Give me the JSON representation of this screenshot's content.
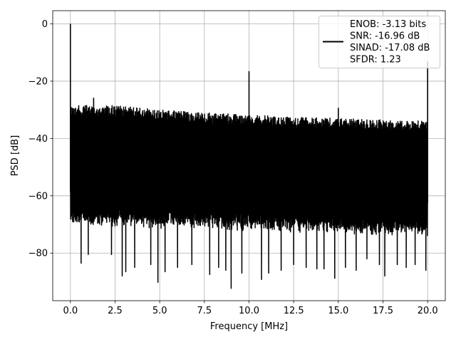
{
  "chart_data": {
    "type": "line",
    "xlabel": "Frequency [MHz]",
    "ylabel": "PSD [dB]",
    "xlim": [
      -0.99,
      20.99
    ],
    "ylim": [
      -96.6,
      4.6
    ],
    "xticks": [
      0.0,
      2.5,
      5.0,
      7.5,
      10.0,
      12.5,
      15.0,
      17.5,
      20.0
    ],
    "xtick_labels": [
      "0.0",
      "2.5",
      "5.0",
      "7.5",
      "10.0",
      "12.5",
      "15.0",
      "17.5",
      "20.0"
    ],
    "yticks": [
      0,
      -20,
      -40,
      -60,
      -80
    ],
    "ytick_labels": [
      "0",
      "−20",
      "−40",
      "−60",
      "−80"
    ],
    "grid": true,
    "legend": {
      "location": "top-right",
      "lines": [
        "ENOB: -3.13 bits",
        "SNR: -16.96 dB",
        "SINAD: -17.08 dB",
        "SFDR: 1.23"
      ]
    },
    "series": [
      {
        "color": "#000000",
        "noise_ceiling": {
          "x": [
            0.0,
            2.5,
            5.0,
            7.5,
            10.0,
            12.5,
            15.0,
            17.5,
            20.0
          ],
          "y": [
            -28.5,
            -28.5,
            -30.0,
            -31.0,
            -31.8,
            -32.5,
            -33.0,
            -33.5,
            -33.8
          ]
        },
        "noise_floor": {
          "x": [
            0.0,
            20.0
          ],
          "y": [
            -66.5,
            -70.5
          ]
        },
        "spikes": [
          {
            "x": 0.0,
            "y": 0.0
          },
          {
            "x": 1.3,
            "y": -25.8
          },
          {
            "x": 10.0,
            "y": -16.5
          },
          {
            "x": 15.0,
            "y": -29.3
          },
          {
            "x": 20.0,
            "y": -13.2
          }
        ],
        "dips": [
          {
            "x": 0.6,
            "y": -83.5
          },
          {
            "x": 1.0,
            "y": -80.5
          },
          {
            "x": 2.3,
            "y": -80.5
          },
          {
            "x": 2.9,
            "y": -88.0
          },
          {
            "x": 3.1,
            "y": -86.5
          },
          {
            "x": 3.6,
            "y": -85.0
          },
          {
            "x": 4.5,
            "y": -84.0
          },
          {
            "x": 4.9,
            "y": -90.2
          },
          {
            "x": 5.3,
            "y": -86.5
          },
          {
            "x": 6.0,
            "y": -85.0
          },
          {
            "x": 6.8,
            "y": -84.0
          },
          {
            "x": 7.8,
            "y": -87.5
          },
          {
            "x": 8.3,
            "y": -85.0
          },
          {
            "x": 8.7,
            "y": -86.0
          },
          {
            "x": 9.0,
            "y": -92.3
          },
          {
            "x": 9.6,
            "y": -87.0
          },
          {
            "x": 10.7,
            "y": -89.2
          },
          {
            "x": 11.1,
            "y": -87.0
          },
          {
            "x": 11.8,
            "y": -86.0
          },
          {
            "x": 12.5,
            "y": -84.0
          },
          {
            "x": 13.2,
            "y": -85.0
          },
          {
            "x": 13.8,
            "y": -85.5
          },
          {
            "x": 14.2,
            "y": -85.5
          },
          {
            "x": 14.8,
            "y": -88.8
          },
          {
            "x": 15.4,
            "y": -85.0
          },
          {
            "x": 16.0,
            "y": -86.0
          },
          {
            "x": 16.6,
            "y": -82.0
          },
          {
            "x": 17.3,
            "y": -84.0
          },
          {
            "x": 17.6,
            "y": -88.0
          },
          {
            "x": 18.3,
            "y": -84.0
          },
          {
            "x": 18.8,
            "y": -85.0
          },
          {
            "x": 19.3,
            "y": -84.0
          },
          {
            "x": 19.9,
            "y": -86.0
          }
        ]
      }
    ]
  }
}
